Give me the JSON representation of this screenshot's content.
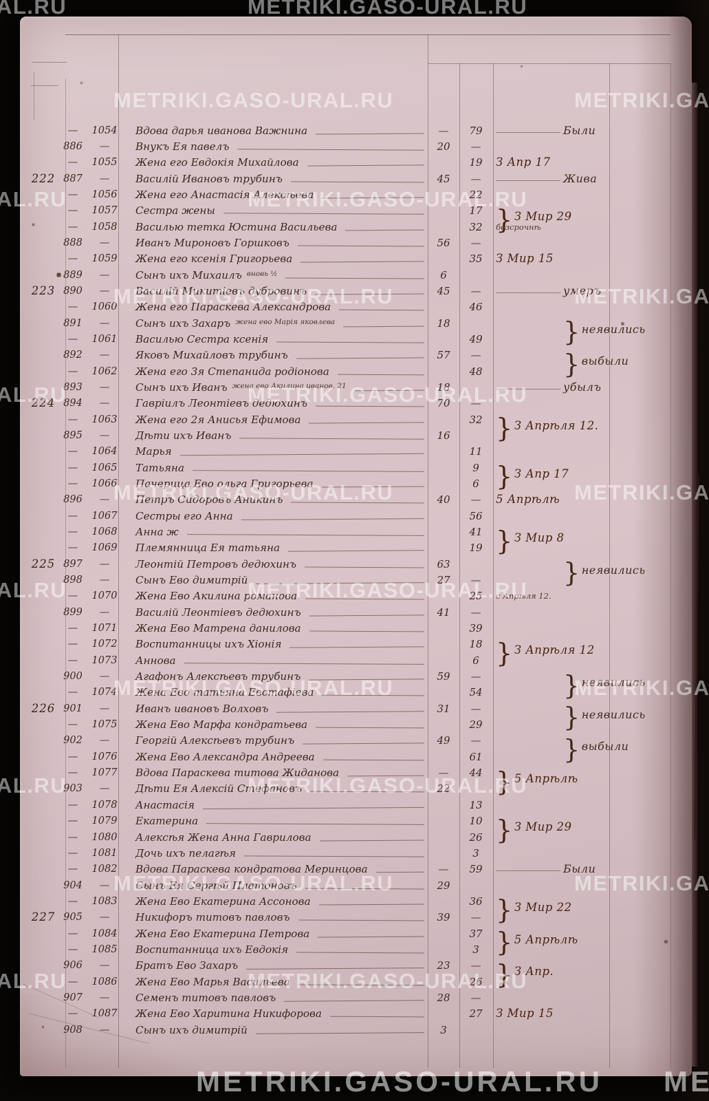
{
  "watermark": "METRIKI.GASO-URAL.RU",
  "table": {
    "rows": [
      {
        "hh": "",
        "mno": "—",
        "fno": "1054",
        "name": "Вдова дарья иванова Важнина",
        "ma": "—",
        "fa": "79",
        "note": "",
        "side": "Были"
      },
      {
        "mno": "886",
        "fno": "—",
        "name": "Внукъ Ея павелъ",
        "ma": "20",
        "fa": "—"
      },
      {
        "mno": "—",
        "fno": "1055",
        "name": "Жена его Евдокія Михайлова",
        "fa": "19",
        "note": "З Апр 17"
      },
      {
        "hh": "222",
        "mno": "887",
        "fno": "—",
        "name": "Василій Ивановъ трубинъ",
        "ma": "45",
        "fa": "—",
        "side": "Жива"
      },
      {
        "mno": "—",
        "fno": "1056",
        "name": "Жена его Анастасія Алексѣева",
        "fa": "22"
      },
      {
        "mno": "—",
        "fno": "1057",
        "name": "Сестра жены",
        "fa": "17",
        "note": "}З Мир 29"
      },
      {
        "mno": "—",
        "fno": "1058",
        "name": "Василью тетка Юстина Васильева",
        "fa": "32",
        "note": "безсрочнѣ",
        "noteSmall": true
      },
      {
        "mno": "888",
        "fno": "—",
        "name": "Иванъ Мироновъ Горшковъ",
        "ma": "56",
        "fa": "—"
      },
      {
        "mno": "—",
        "fno": "1059",
        "name": "Жена его ксенія Григорьева",
        "fa": "35",
        "note": "З Мир 15"
      },
      {
        "mno": "889",
        "fno": "—",
        "name": "Сынъ ихъ Михаилъ",
        "small": "вновь ½",
        "ma": "6"
      },
      {
        "hh": "223",
        "mno": "890",
        "fno": "—",
        "name": "Василій Микитіевъ дубровинъ",
        "ma": "45",
        "fa": "—",
        "side": "умеръ"
      },
      {
        "mno": "—",
        "fno": "1060",
        "name": "Жена его Параскева Александрова",
        "fa": "46"
      },
      {
        "mno": "891",
        "fno": "—",
        "name": "Сынъ ихъ Захаръ",
        "small": "жена ево Марія яковлева",
        "ma": "18",
        "side": "}неявились"
      },
      {
        "mno": "—",
        "fno": "1061",
        "name": "Василью Сестра ксенія",
        "fa": "49"
      },
      {
        "mno": "892",
        "fno": "—",
        "name": "Яковъ Михайловъ трубинъ",
        "ma": "57",
        "fa": "—",
        "side": "}выбыли"
      },
      {
        "mno": "—",
        "fno": "1062",
        "name": "Жена его 3я Степанида родіонова",
        "fa": "48"
      },
      {
        "mno": "893",
        "fno": "—",
        "name": "Сынъ ихъ Иванъ",
        "small": "жена ево Акилина иванов. 21",
        "ma": "18",
        "side": "убылъ"
      },
      {
        "hh": "224",
        "mno": "894",
        "fno": "—",
        "name": "Гавріилъ Леонтіевъ дедюхинъ",
        "ma": "70",
        "fa": "—"
      },
      {
        "mno": "—",
        "fno": "1063",
        "name": "Жена его 2я Анисья Ефимова",
        "fa": "32",
        "note": "}З Апрѣля 12."
      },
      {
        "mno": "895",
        "fno": "—",
        "name": "Дѣти ихъ Иванъ",
        "ma": "16"
      },
      {
        "mno": "—",
        "fno": "1064",
        "name": "Марья",
        "fa": "11"
      },
      {
        "mno": "—",
        "fno": "1065",
        "name": "Татьяна",
        "fa": "9",
        "note": "}З Апр 17"
      },
      {
        "mno": "—",
        "fno": "1066",
        "name": "Пачерица Ево ольга Григорьева",
        "fa": "6"
      },
      {
        "mno": "896",
        "fno": "—",
        "name": "Петръ Сидоровъ Аникинъ",
        "ma": "40",
        "fa": "—",
        "note": "5 Апрѣлѣ"
      },
      {
        "mno": "—",
        "fno": "1067",
        "name": "Сестры его Анна",
        "fa": "56"
      },
      {
        "mno": "—",
        "fno": "1068",
        "name": "Анна ж",
        "fa": "41",
        "note": "}З Мир 8"
      },
      {
        "mno": "—",
        "fno": "1069",
        "name": "Племянница Ея татьяна",
        "fa": "19"
      },
      {
        "hh": "225",
        "mno": "897",
        "fno": "—",
        "name": "Леонтій Петровъ дедюхинъ",
        "ma": "63",
        "side": "}неявились"
      },
      {
        "mno": "898",
        "fno": "—",
        "name": "Сынъ Ево димитрій",
        "ma": "27",
        "fa": "—"
      },
      {
        "mno": "—",
        "fno": "1070",
        "name": "Жена Ево Акилина романова",
        "fa": "25",
        "note": "с Апрѣля 12.",
        "noteSmall": true
      },
      {
        "mno": "899",
        "fno": "—",
        "name": "Василій Леонтіевъ дедюхинъ",
        "ma": "41",
        "fa": "—"
      },
      {
        "mno": "—",
        "fno": "1071",
        "name": "Жена Ево Матрена данилова",
        "fa": "39"
      },
      {
        "mno": "—",
        "fno": "1072",
        "name": "Воспитанницы ихъ Хіонія",
        "fa": "18",
        "note": "}З Апрѣля 12"
      },
      {
        "mno": "—",
        "fno": "1073",
        "name": "Аннова",
        "fa": "6"
      },
      {
        "mno": "900",
        "fno": "—",
        "name": "Агафонъ Алексѣевъ трубинъ",
        "ma": "59",
        "fa": "—",
        "side": "}неявились"
      },
      {
        "mno": "—",
        "fno": "1074",
        "name": "Жена Ево татьяна Евстафіева",
        "fa": "54"
      },
      {
        "hh": "226",
        "mno": "901",
        "fno": "—",
        "name": "Иванъ ивановъ Волховъ",
        "ma": "31",
        "fa": "—",
        "side": "}неявились"
      },
      {
        "mno": "—",
        "fno": "1075",
        "name": "Жена Ево Марфа кондратьева",
        "fa": "29"
      },
      {
        "mno": "902",
        "fno": "—",
        "name": "Георгій Алексѣевъ трубинъ",
        "ma": "49",
        "fa": "—",
        "side": "}выбыли"
      },
      {
        "mno": "—",
        "fno": "1076",
        "name": "Жена Ево Александра Андреева",
        "fa": "61"
      },
      {
        "mno": "—",
        "fno": "1077",
        "name": "Вдова Параскева титова Жиданова",
        "ma": "—",
        "fa": "44",
        "note": "}5 Апрѣлѣ"
      },
      {
        "mno": "903",
        "fno": "—",
        "name": "Дѣти Ея Алексій Стефановъ",
        "ma": "22"
      },
      {
        "mno": "—",
        "fno": "1078",
        "name": "Анастасія",
        "fa": "13"
      },
      {
        "mno": "—",
        "fno": "1079",
        "name": "Екатерина",
        "fa": "10",
        "note": "}З Мир 29"
      },
      {
        "mno": "—",
        "fno": "1080",
        "name": "Алексѣя Жена Анна Гаврилова",
        "fa": "26"
      },
      {
        "mno": "—",
        "fno": "1081",
        "name": "Дочь ихъ пелагѣя",
        "fa": "3"
      },
      {
        "mno": "—",
        "fno": "1082",
        "name": "Вдова Параскева кондратова Меринцова",
        "ma": "—",
        "fa": "59",
        "side": "Были"
      },
      {
        "mno": "904",
        "fno": "—",
        "name": "Сынъ Ея Сергѣй Платоновъ",
        "ma": "29"
      },
      {
        "mno": "—",
        "fno": "1083",
        "name": "Жена Ево Екатерина Ассонова",
        "fa": "36",
        "note": "}З Мир 22"
      },
      {
        "hh": "227",
        "mno": "905",
        "fno": "—",
        "name": "Никифоръ титовъ павловъ",
        "ma": "39",
        "fa": "—"
      },
      {
        "mno": "—",
        "fno": "1084",
        "name": "Жена Ево Екатерина Петрова",
        "fa": "37",
        "note": "}5 Апрѣлѣ"
      },
      {
        "mno": "—",
        "fno": "1085",
        "name": "Воспитанница ихъ Евдокія",
        "fa": "3"
      },
      {
        "mno": "906",
        "fno": "—",
        "name": "Братъ Ево Захаръ",
        "ma": "23",
        "fa": "—",
        "note": "}З Апр."
      },
      {
        "mno": "—",
        "fno": "1086",
        "name": "Жена Ево Марья Васильева",
        "fa": "26"
      },
      {
        "mno": "907",
        "fno": "—",
        "name": "Семенъ титовъ павловъ",
        "ma": "28",
        "fa": "—"
      },
      {
        "mno": "—",
        "fno": "1087",
        "name": "Жена Ево Харитина Никифорова",
        "fa": "27",
        "note": "З Мир 15"
      },
      {
        "mno": "908",
        "fno": "—",
        "name": "Сынъ ихъ димитрій",
        "ma": "3"
      }
    ]
  }
}
